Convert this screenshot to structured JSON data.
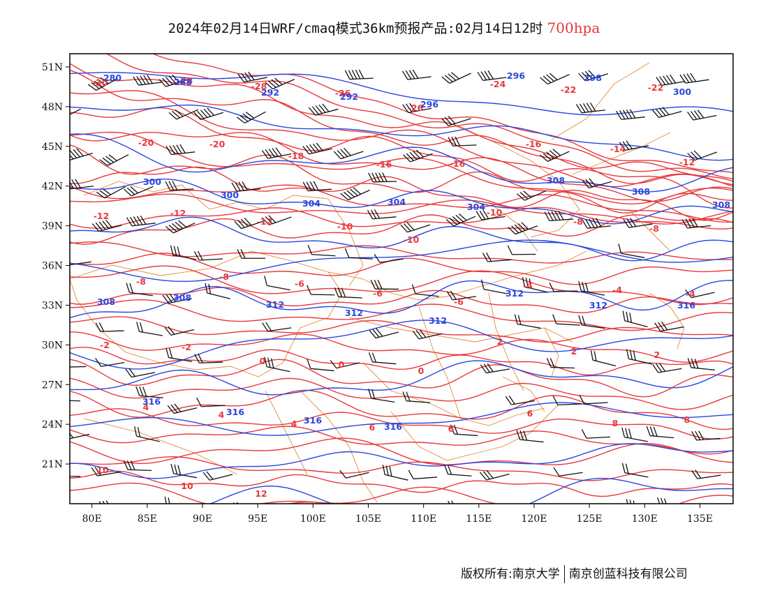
{
  "title": {
    "main": "2024年02月14日WRF/cmaq模式36km预报产品:02月14日12时",
    "level": "700hpa"
  },
  "map": {
    "lon_range": [
      78,
      138
    ],
    "lat_range": [
      18,
      52
    ],
    "lat_ticks": [
      "51N",
      "48N",
      "45N",
      "42N",
      "39N",
      "36N",
      "33N",
      "30N",
      "27N",
      "24N",
      "21N"
    ],
    "lon_ticks": [
      "80E",
      "85E",
      "90E",
      "95E",
      "100E",
      "105E",
      "110E",
      "115E",
      "120E",
      "125E",
      "130E",
      "135E"
    ],
    "colors": {
      "temperature": "#e8383c",
      "height": "#2846e0",
      "boundary": "#e08a3a",
      "wind": "#111111"
    },
    "temperature_labels": [
      "-30",
      "-28",
      "-28",
      "-26",
      "-26",
      "-24",
      "-22",
      "-22",
      "-20",
      "-20",
      "-18",
      "-16",
      "-16",
      "-16",
      "-14",
      "-12",
      "-12",
      "-12",
      "-12",
      "-10",
      "-10",
      "-10",
      "-8",
      "-8",
      "-8",
      "-8",
      "-6",
      "-6",
      "-6",
      "-4",
      "-4",
      "-4",
      "-2",
      "-2",
      "0",
      "0",
      "0",
      "2",
      "2",
      "2",
      "4",
      "4",
      "4",
      "6",
      "6",
      "6",
      "8",
      "8",
      "10",
      "10",
      "12"
    ],
    "height_labels": [
      "280",
      "288",
      "292",
      "292",
      "296",
      "296",
      "298",
      "300",
      "300",
      "300",
      "304",
      "304",
      "304",
      "308",
      "308",
      "308",
      "308",
      "308",
      "312",
      "312",
      "312",
      "312",
      "312",
      "316",
      "316",
      "316",
      "316",
      "316"
    ]
  },
  "footer": {
    "left": "版权所有:南京大学",
    "right": "南京创蓝科技有限公司"
  }
}
